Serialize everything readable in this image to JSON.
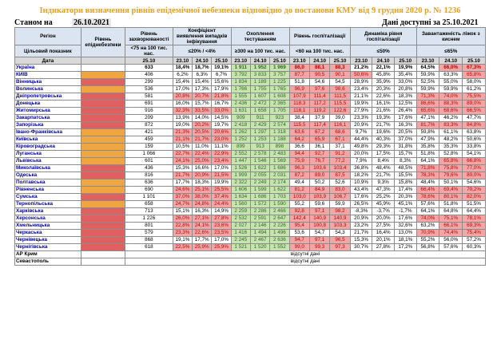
{
  "title": "Індикатори визначення рівнів епідемічної небезпеки відповідно до постанови КМУ від 9 грудня 2020 р. № 1236",
  "status": {
    "label": "Станом на",
    "date": "26.10.2021",
    "available": "Дані доступні за 25.10.2021"
  },
  "headers": {
    "region": "Регіон",
    "level": "Рівень епіднебезпеки",
    "incidence": "Рівень захворюваності",
    "detection": "Коефіцієнт виявлення випадків інфікування",
    "testing": "Охоплення тестуванням",
    "hosp": "Рівень госпіталізації",
    "dynamic": "Динаміка рівня госпіталізації",
    "beds": "Завантаженість ліжок з киснем",
    "target_label": "Цільовий показник",
    "incidence_target": "<75 на 100 тис. нас.",
    "detection_target": "≤20% / <4%",
    "testing_target": "≥300 на 100 тис. нас.",
    "hosp_target": "<60 на 100 тис. нас.",
    "dynamic_target": "≤50%",
    "beds_target": "≤65%",
    "date_label": "Дата",
    "incidence_date": "25.10",
    "d1": "23.10",
    "d2": "24.10",
    "d3": "25.10"
  },
  "rows": [
    {
      "region": "Україна",
      "level": "none",
      "vals": [
        "633",
        "18,4%",
        "18,7%",
        "19,1%",
        "1 911",
        "1 952",
        "1 969",
        "86,0",
        "88,1",
        "88,3",
        "21,2%",
        "22,1%",
        "19,9%",
        "64,5%",
        "66,0%",
        "67,3%"
      ],
      "cls": [
        "",
        "",
        "",
        "",
        "g",
        "g",
        "g",
        "r",
        "r",
        "r",
        "",
        "",
        "",
        "",
        "r",
        "r"
      ]
    },
    {
      "region": "КИЇВ",
      "level": "orange",
      "vals": [
        "406",
        "6,2%",
        "6,3%",
        "6,7%",
        "3 792",
        "3 833",
        "3 757",
        "87,7",
        "90,5",
        "90,1",
        "50,6%",
        "45,8%",
        "35,4%",
        "59,9%",
        "63,3%",
        "65,8%"
      ],
      "cls": [
        "",
        "",
        "",
        "",
        "g",
        "g",
        "g",
        "r",
        "r",
        "r",
        "r",
        "",
        "",
        "",
        "",
        "r"
      ]
    },
    {
      "region": "Вінницька",
      "level": "red",
      "vals": [
        "299",
        "15,4%",
        "15,4%",
        "15,6%",
        "1 834",
        "1 189",
        "1 225",
        "51,8",
        "54,6",
        "54,5",
        "28,9%",
        "35,9%",
        "33,0%",
        "52,5%",
        "55,0%",
        "58,0%"
      ],
      "cls": [
        "",
        "",
        "",
        "",
        "g",
        "g",
        "g",
        "",
        "",
        "",
        "",
        "",
        "",
        "",
        "",
        ""
      ]
    },
    {
      "region": "Волинська",
      "level": "orange",
      "vals": [
        "536",
        "17,0%",
        "17,3%",
        "17,9%",
        "1 766",
        "1 755",
        "1 765",
        "96,9",
        "97,6",
        "98,6",
        "23,4%",
        "20,3%",
        "20,8%",
        "59,9%",
        "59,9%",
        "61,2%"
      ],
      "cls": [
        "",
        "",
        "",
        "",
        "g",
        "g",
        "g",
        "r",
        "r",
        "r",
        "",
        "",
        "",
        "",
        "",
        ""
      ]
    },
    {
      "region": "Дніпропетровська",
      "level": "red",
      "vals": [
        "581",
        "20,8%",
        "20,7%",
        "21,8%",
        "1 555",
        "1 607",
        "1 608",
        "107,9",
        "111,4",
        "111,5",
        "21,1%",
        "22,6%",
        "18,3%",
        "71,3%",
        "74,0%",
        "75,5%"
      ],
      "cls": [
        "",
        "r",
        "r",
        "r",
        "g",
        "g",
        "g",
        "r",
        "r",
        "r",
        "",
        "",
        "",
        "r",
        "r",
        "r"
      ]
    },
    {
      "region": "Донецька",
      "level": "red",
      "vals": [
        "691",
        "16,0%",
        "15,7%",
        "16,7%",
        "2 436",
        "2 472",
        "2 365",
        "118,3",
        "117,2",
        "115,5",
        "19,9%",
        "16,1%",
        "12,5%",
        "86,6%",
        "88,3%",
        "89,0%"
      ],
      "cls": [
        "",
        "",
        "",
        "",
        "g",
        "g",
        "g",
        "r",
        "r",
        "r",
        "",
        "",
        "",
        "r",
        "r",
        "r"
      ]
    },
    {
      "region": "Житомирська",
      "level": "red",
      "vals": [
        "916",
        "32,3%",
        "33,5%",
        "33,0%",
        "1 631",
        "1 658",
        "1 705",
        "118,1",
        "119,2",
        "122,6",
        "27,9%",
        "21,6%",
        "26,4%",
        "65,6%",
        "68,6%",
        "66,5%"
      ],
      "cls": [
        "",
        "r",
        "r",
        "r",
        "g",
        "g",
        "g",
        "r",
        "r",
        "r",
        "",
        "",
        "",
        "r",
        "r",
        "r"
      ]
    },
    {
      "region": "Закарпатська",
      "level": "red",
      "vals": [
        "209",
        "13,9%",
        "14,0%",
        "14,5%",
        "909",
        "911",
        "923",
        "38,4",
        "37,9",
        "39,0",
        "23,3%",
        "19,3%",
        "17,6%",
        "47,1%",
        "46,2%",
        "47,7%"
      ],
      "cls": [
        "",
        "",
        "",
        "",
        "g",
        "g",
        "g",
        "",
        "",
        "",
        "",
        "",
        "",
        "",
        "",
        ""
      ]
    },
    {
      "region": "Запорізька",
      "level": "red",
      "vals": [
        "872",
        "19,0%",
        "20,2%",
        "19,7%",
        "2 418",
        "2 429",
        "2 574",
        "115,5",
        "117,4",
        "116,1",
        "20,9%",
        "21,7%",
        "16,3%",
        "81,7%",
        "83,3%",
        "84,8%"
      ],
      "cls": [
        "",
        "",
        "r",
        "",
        "g",
        "g",
        "g",
        "r",
        "r",
        "r",
        "",
        "",
        "",
        "r",
        "r",
        "r"
      ]
    },
    {
      "region": "Івано-Франківська",
      "level": "orange",
      "vals": [
        "421",
        "21,3%",
        "20,5%",
        "20,6%",
        "1 262",
        "1 297",
        "1 318",
        "63,6",
        "67,2",
        "68,6",
        "9,7%",
        "19,6%",
        "20,5%",
        "59,8%",
        "61,1%",
        "63,8%"
      ],
      "cls": [
        "",
        "r",
        "r",
        "r",
        "g",
        "g",
        "g",
        "r",
        "r",
        "r",
        "",
        "",
        "",
        "",
        "",
        ""
      ]
    },
    {
      "region": "Київська",
      "level": "orange",
      "vals": [
        "459",
        "21,1%",
        "21,7%",
        "23,0%",
        "1 252",
        "1 253",
        "1 188",
        "64,2",
        "65,9",
        "67,1",
        "44,4%",
        "40,3%",
        "37,0%",
        "47,9%",
        "48,2%",
        "50,6%"
      ],
      "cls": [
        "",
        "r",
        "r",
        "r",
        "g",
        "g",
        "g",
        "r",
        "r",
        "r",
        "",
        "",
        "",
        "",
        "",
        ""
      ]
    },
    {
      "region": "Кіровоградська",
      "level": "orange",
      "vals": [
        "159",
        "10,5%",
        "11,0%",
        "11,1%",
        "899",
        "913",
        "898",
        "36,6",
        "36,1",
        "37,1",
        "49,8%",
        "29,3%",
        "31,8%",
        "35,8%",
        "35,3%",
        "33,8%"
      ],
      "cls": [
        "",
        "",
        "",
        "",
        "g",
        "g",
        "g",
        "",
        "",
        "",
        "",
        "",
        "",
        "",
        "",
        ""
      ]
    },
    {
      "region": "Луганська",
      "level": "orange",
      "vals": [
        "1 066",
        "22,7%",
        "22,4%",
        "22,9%",
        "2 552",
        "2 578",
        "2 483",
        "94,4",
        "92,7",
        "91,2",
        "20,0%",
        "17,5%",
        "15,7%",
        "51,8%",
        "52,8%",
        "54,1%"
      ],
      "cls": [
        "",
        "r",
        "r",
        "r",
        "g",
        "g",
        "g",
        "r",
        "r",
        "r",
        "",
        "",
        "",
        "",
        "",
        ""
      ]
    },
    {
      "region": "Львівська",
      "level": "orange",
      "vals": [
        "601",
        "24,1%",
        "25,0%",
        "23,4%",
        "1 447",
        "1 546",
        "1 569",
        "75,9",
        "76,7",
        "77,2",
        "7,9%",
        "8,4%",
        "8,3%",
        "64,1%",
        "65,8%",
        "66,8%"
      ],
      "cls": [
        "",
        "r",
        "r",
        "r",
        "g",
        "g",
        "g",
        "r",
        "r",
        "r",
        "",
        "",
        "",
        "",
        "r",
        "r"
      ]
    },
    {
      "region": "Миколаївська",
      "level": "red",
      "vals": [
        "436",
        "15,3%",
        "16,6%",
        "17,0%",
        "1 526",
        "1 622",
        "1 686",
        "96,3",
        "103,6",
        "103,4",
        "36,8%",
        "48,4%",
        "48,5%",
        "71,8%",
        "75,8%",
        "77,0%"
      ],
      "cls": [
        "",
        "",
        "",
        "",
        "g",
        "g",
        "g",
        "r",
        "r",
        "r",
        "",
        "",
        "",
        "r",
        "r",
        "r"
      ]
    },
    {
      "region": "Одеська",
      "level": "red",
      "vals": [
        "816",
        "21,7%",
        "20,9%",
        "21,5%",
        "1 999",
        "2 055",
        "2 031",
        "87,2",
        "89,0",
        "87,5",
        "18,2%",
        "21,7%",
        "15,5%",
        "78,3%",
        "79,6%",
        "80,0%"
      ],
      "cls": [
        "",
        "r",
        "r",
        "r",
        "g",
        "g",
        "g",
        "r",
        "r",
        "r",
        "",
        "",
        "",
        "r",
        "r",
        "r"
      ]
    },
    {
      "region": "Полтавська",
      "level": "orange",
      "vals": [
        "636",
        "17,7%",
        "18,3%",
        "19,9%",
        "2 322",
        "2 249",
        "2 174",
        "49,4",
        "50,2",
        "52,6",
        "10,9%",
        "9,3%",
        "15,8%",
        "48,4%",
        "50,1%",
        "54,6%"
      ],
      "cls": [
        "",
        "",
        "",
        "",
        "g",
        "g",
        "g",
        "",
        "",
        "",
        "",
        "",
        "",
        "",
        "",
        ""
      ]
    },
    {
      "region": "Рівненська",
      "level": "orange",
      "vals": [
        "690",
        "24,6%",
        "25,1%",
        "25,5%",
        "1 606",
        "1 599",
        "1 622",
        "81,2",
        "84,9",
        "83,0",
        "43,4%",
        "47,3%",
        "17,4%",
        "66,4%",
        "69,4%",
        "70,2%"
      ],
      "cls": [
        "",
        "r",
        "r",
        "r",
        "g",
        "g",
        "g",
        "r",
        "r",
        "r",
        "",
        "",
        "",
        "r",
        "r",
        "r"
      ]
    },
    {
      "region": "Сумська",
      "level": "red",
      "vals": [
        "1 101",
        "37,0%",
        "38,0%",
        "37,4%",
        "1 634",
        "1 686",
        "1 703",
        "103,0",
        "103,9",
        "106,7",
        "17,6%",
        "25,2%",
        "20,3%",
        "78,6%",
        "80,1%",
        "82,0%"
      ],
      "cls": [
        "",
        "r",
        "r",
        "r",
        "g",
        "g",
        "g",
        "r",
        "r",
        "r",
        "",
        "",
        "",
        "r",
        "r",
        "r"
      ]
    },
    {
      "region": "Тернопільська",
      "level": "orange",
      "vals": [
        "658",
        "24,7%",
        "24,8%",
        "24,4%",
        "1 560",
        "1 572",
        "1 590",
        "55,2",
        "59,6",
        "59,9",
        "26,5%",
        "45,9%",
        "45,1%",
        "57,6%",
        "51,8%",
        "51,5%"
      ],
      "cls": [
        "",
        "r",
        "r",
        "r",
        "g",
        "g",
        "g",
        "",
        "",
        "",
        "",
        "",
        "",
        "",
        "",
        ""
      ]
    },
    {
      "region": "Харківська",
      "level": "red",
      "vals": [
        "713",
        "15,1%",
        "16,3%",
        "14,9%",
        "2 259",
        "2 286",
        "2 466",
        "92,8",
        "97,1",
        "98,2",
        "-8,3%",
        "-3,7%",
        "-1,7%",
        "64,1%",
        "64,8%",
        "64,4%"
      ],
      "cls": [
        "",
        "",
        "",
        "",
        "g",
        "g",
        "g",
        "r",
        "r",
        "r",
        "",
        "",
        "",
        "",
        "",
        ""
      ]
    },
    {
      "region": "Херсонська",
      "level": "red",
      "vals": [
        "1 226",
        "26,0%",
        "27,1%",
        "27,8%",
        "2 532",
        "2 591",
        "2 647",
        "142,4",
        "140,9",
        "140,9",
        "20,9%",
        "20,0%",
        "17,6%",
        "74,0%",
        "75,1%",
        "78,1%"
      ],
      "cls": [
        "",
        "r",
        "r",
        "r",
        "g",
        "g",
        "g",
        "r",
        "r",
        "r",
        "",
        "",
        "",
        "r",
        "r",
        "r"
      ]
    },
    {
      "region": "Хмельницька",
      "level": "red",
      "vals": [
        "801",
        "22,8%",
        "24,1%",
        "23,6%",
        "2 027",
        "2 146",
        "2 226",
        "95,4",
        "100,8",
        "103,3",
        "23,2%",
        "27,5%",
        "32,6%",
        "63,2%",
        "66,1%",
        "69,3%"
      ],
      "cls": [
        "",
        "r",
        "r",
        "r",
        "g",
        "g",
        "g",
        "r",
        "r",
        "r",
        "",
        "",
        "",
        "",
        "r",
        "r"
      ]
    },
    {
      "region": "Черкаська",
      "level": "red",
      "vals": [
        "579",
        "23,3%",
        "22,6%",
        "23,5%",
        "1 416",
        "1 494",
        "1 496",
        "53,6",
        "54,7",
        "54,3",
        "21,7%",
        "16,4%",
        "13,0%",
        "70,9%",
        "74,4%",
        "75,4%"
      ],
      "cls": [
        "",
        "r",
        "r",
        "r",
        "g",
        "g",
        "g",
        "",
        "",
        "",
        "",
        "",
        "",
        "r",
        "r",
        "r"
      ]
    },
    {
      "region": "Чернівецька",
      "level": "red",
      "vals": [
        "868",
        "19,1%",
        "17,7%",
        "17,0%",
        "2 245",
        "2 467",
        "2 636",
        "94,7",
        "97,1",
        "96,5",
        "15,3%",
        "20,1%",
        "18,1%",
        "55,2%",
        "56,0%",
        "57,2%"
      ],
      "cls": [
        "",
        "",
        "",
        "",
        "g",
        "g",
        "g",
        "r",
        "r",
        "r",
        "",
        "",
        "",
        "",
        "",
        ""
      ]
    },
    {
      "region": "Чернігівська",
      "level": "red",
      "vals": [
        "618",
        "22,5%",
        "25,9%",
        "25,9%",
        "1 521",
        "1 520",
        "1 552",
        "99,0",
        "99,3",
        "97,3",
        "30,7%",
        "27,8%",
        "17,2%",
        "56,8%",
        "57,6%",
        "60,3%"
      ],
      "cls": [
        "",
        "r",
        "r",
        "r",
        "g",
        "g",
        "g",
        "r",
        "r",
        "r",
        "",
        "",
        "",
        "",
        "",
        ""
      ]
    }
  ],
  "no_data_rows": [
    {
      "region": "АР Крим",
      "text": "відсутні дані"
    },
    {
      "region": "Севастополь",
      "text": "відсутні дані"
    }
  ],
  "colors": {
    "red": "#e06060",
    "orange": "#f0a640",
    "yellow": "#ffe167",
    "green": "#92d050"
  }
}
